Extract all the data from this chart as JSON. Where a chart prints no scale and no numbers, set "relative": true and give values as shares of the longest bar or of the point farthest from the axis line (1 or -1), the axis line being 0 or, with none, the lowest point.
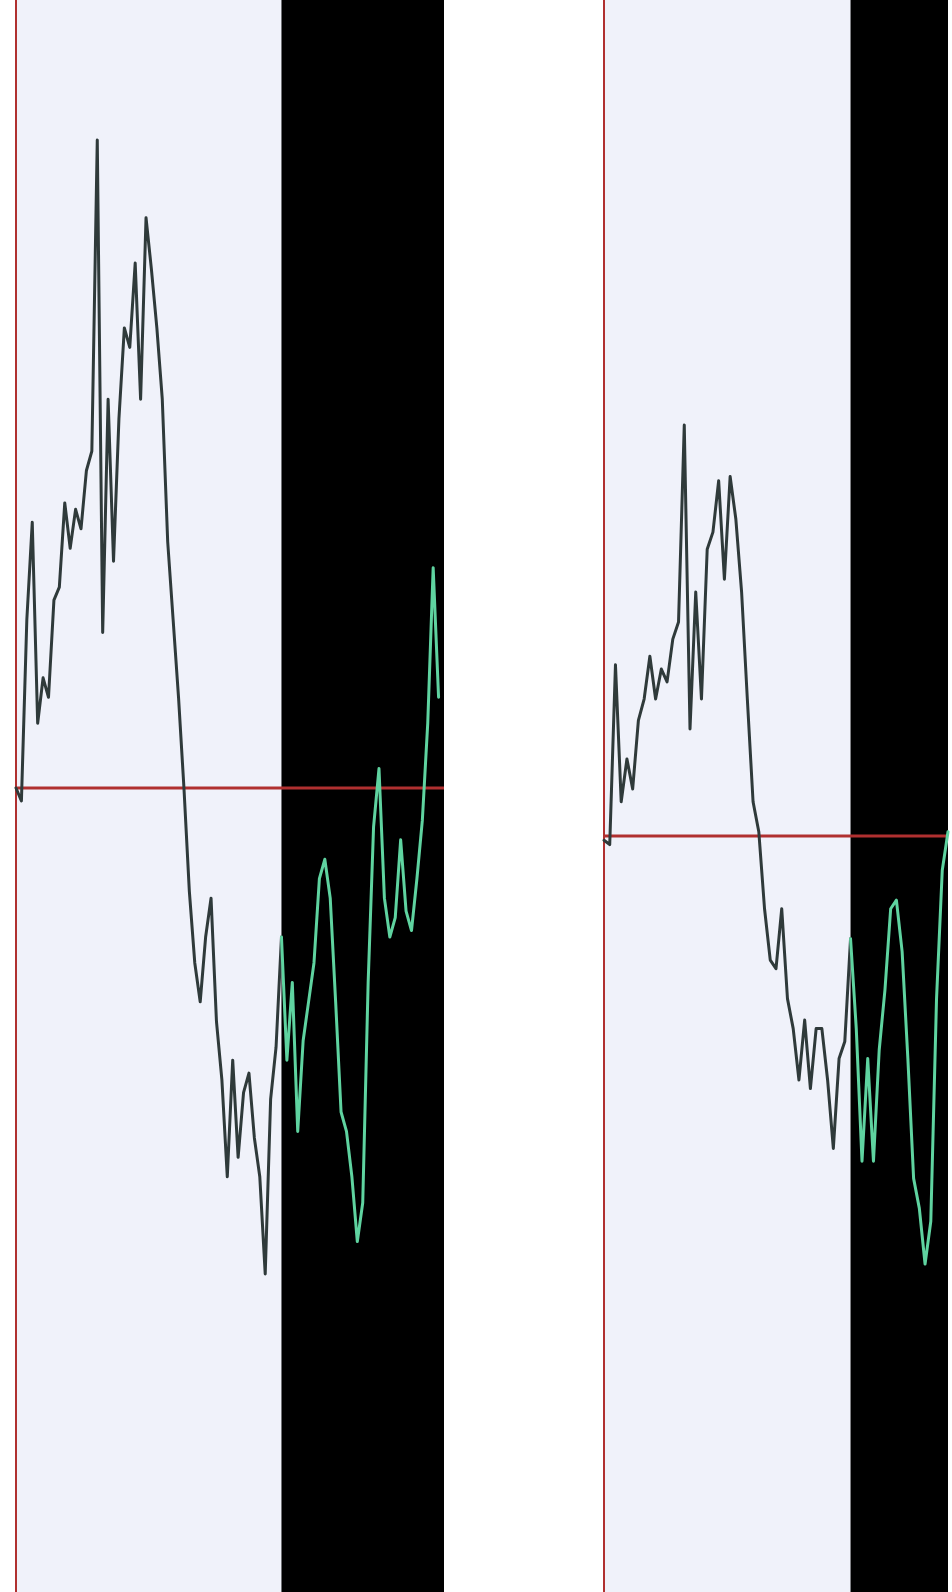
{
  "chart_data": [
    {
      "type": "line",
      "relative": true,
      "categories": [
        null,
        null,
        null,
        null,
        null,
        null,
        null,
        null,
        null,
        null,
        null,
        null,
        null,
        null,
        null,
        null,
        null,
        null,
        null,
        null,
        null,
        null,
        null,
        null,
        null,
        null,
        null,
        null,
        null,
        null,
        null,
        null,
        null,
        null,
        null,
        null,
        null,
        null,
        null,
        null,
        null,
        null,
        null,
        null,
        null,
        null,
        null,
        null,
        null,
        null,
        null,
        null,
        null,
        null,
        null,
        null,
        null,
        null,
        null,
        null,
        null,
        null,
        null,
        null,
        null,
        null,
        null,
        null,
        null,
        null,
        null,
        null,
        null,
        null,
        null,
        null,
        null,
        null,
        null,
        null
      ],
      "ref_lines": [
        {
          "axis": "y",
          "value": 0,
          "color": "#b03030"
        }
      ],
      "series": [
        {
          "color": "#2f3a3a",
          "values": [
            0.0,
            -0.02,
            0.26,
            0.41,
            0.1,
            0.17,
            0.14,
            0.29,
            0.31,
            0.44,
            0.37,
            0.43,
            0.4,
            0.49,
            0.52,
            1,
            0.24,
            0.6,
            0.35,
            0.57,
            0.71,
            0.68,
            0.81,
            0.6,
            0.88,
            0.8,
            0.71,
            0.6,
            0.38,
            0.26,
            0.14,
            0.0,
            -0.16,
            -0.27,
            -0.33,
            -0.23,
            -0.17,
            -0.36,
            -0.45,
            -0.6,
            -0.42,
            -0.57,
            -0.47,
            -0.44,
            -0.54,
            -0.6,
            -0.75,
            -0.48,
            -0.4,
            -0.23,
            null,
            null,
            null,
            null,
            null,
            null,
            null,
            null,
            null,
            null,
            null,
            null,
            null,
            null,
            null,
            null,
            null,
            null,
            null,
            null,
            null,
            null,
            null,
            null,
            null,
            null,
            null,
            null,
            null,
            null
          ]
        },
        {
          "color": "#5fd3a0",
          "values": [
            null,
            null,
            null,
            null,
            null,
            null,
            null,
            null,
            null,
            null,
            null,
            null,
            null,
            null,
            null,
            null,
            null,
            null,
            null,
            null,
            null,
            null,
            null,
            null,
            null,
            null,
            null,
            null,
            null,
            null,
            null,
            null,
            null,
            null,
            null,
            null,
            null,
            null,
            null,
            null,
            null,
            null,
            null,
            null,
            null,
            null,
            null,
            null,
            null,
            -0.23,
            -0.42,
            -0.3,
            -0.53,
            -0.39,
            -0.33,
            -0.27,
            -0.14,
            -0.11,
            -0.17,
            -0.33,
            -0.5,
            -0.53,
            -0.6,
            -0.7,
            -0.64,
            -0.3,
            -0.06,
            0.03,
            -0.17,
            -0.23,
            -0.2,
            -0.08,
            -0.19,
            -0.22,
            -0.14,
            -0.05,
            0.1,
            0.34,
            0.14,
            null
          ]
        }
      ]
    },
    {
      "type": "line",
      "relative": true,
      "categories": [
        null,
        null,
        null,
        null,
        null,
        null,
        null,
        null,
        null,
        null,
        null,
        null,
        null,
        null,
        null,
        null,
        null,
        null,
        null,
        null,
        null,
        null,
        null,
        null,
        null,
        null,
        null,
        null,
        null,
        null,
        null,
        null,
        null,
        null,
        null,
        null,
        null,
        null,
        null,
        null,
        null,
        null,
        null,
        null,
        null,
        null,
        null,
        null,
        null,
        null,
        null,
        null,
        null,
        null,
        null,
        null,
        null,
        null,
        null,
        null,
        null
      ],
      "ref_lines": [
        {
          "axis": "y",
          "value": 0,
          "color": "#b03030"
        }
      ],
      "series": [
        {
          "color": "#2f3a3a",
          "values": [
            -0.01,
            -0.02,
            0.4,
            0.08,
            0.18,
            0.11,
            0.27,
            0.32,
            0.42,
            0.32,
            0.39,
            0.36,
            0.46,
            0.5,
            0.96,
            0.25,
            0.57,
            0.32,
            0.67,
            0.71,
            0.83,
            0.6,
            0.84,
            0.74,
            0.57,
            0.32,
            0.08,
            0.01,
            -0.17,
            -0.29,
            -0.31,
            -0.17,
            -0.38,
            -0.45,
            -0.57,
            -0.43,
            -0.59,
            -0.45,
            -0.45,
            -0.57,
            -0.73,
            -0.52,
            -0.48,
            -0.24,
            null,
            null,
            null,
            null,
            null,
            null,
            null,
            null,
            null,
            null,
            null,
            null,
            null,
            null,
            null,
            null,
            null
          ]
        },
        {
          "color": "#5fd3a0",
          "values": [
            null,
            null,
            null,
            null,
            null,
            null,
            null,
            null,
            null,
            null,
            null,
            null,
            null,
            null,
            null,
            null,
            null,
            null,
            null,
            null,
            null,
            null,
            null,
            null,
            null,
            null,
            null,
            null,
            null,
            null,
            null,
            null,
            null,
            null,
            null,
            null,
            null,
            null,
            null,
            null,
            null,
            null,
            null,
            -0.24,
            -0.45,
            -0.76,
            -0.52,
            -0.76,
            -0.5,
            -0.36,
            -0.17,
            -0.15,
            -0.27,
            -0.52,
            -0.8,
            -0.87,
            -1,
            -0.9,
            -0.38,
            -0.08,
            0.01
          ]
        }
      ]
    }
  ]
}
